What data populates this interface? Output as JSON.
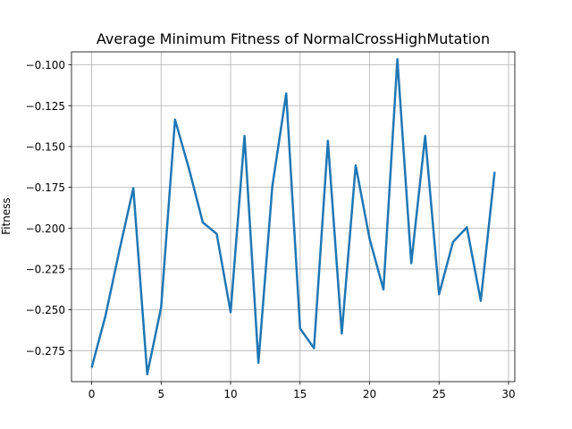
{
  "chart_data": {
    "type": "line",
    "title": "Average Minimum Fitness of NormalCrossHighMutation",
    "xlabel": "",
    "ylabel": "Fitness",
    "xlim": [
      -1.45,
      30.45
    ],
    "ylim": [
      -0.294,
      -0.092
    ],
    "xticks": [
      0,
      5,
      10,
      15,
      20,
      25,
      30
    ],
    "yticks": [
      -0.275,
      -0.25,
      -0.225,
      -0.2,
      -0.175,
      -0.15,
      -0.125,
      -0.1
    ],
    "xtick_labels": [
      "0",
      "5",
      "10",
      "15",
      "20",
      "25",
      "30"
    ],
    "ytick_labels": [
      "−0.275",
      "−0.250",
      "−0.225",
      "−0.200",
      "−0.175",
      "−0.150",
      "−0.125",
      "−0.100"
    ],
    "grid": true,
    "legend": false,
    "color": "#1f77b4",
    "series": [
      {
        "x": [
          0,
          1,
          2,
          3,
          4,
          5,
          6,
          7,
          8,
          9,
          10,
          11,
          12,
          13,
          14,
          15,
          16,
          17,
          18,
          19,
          20,
          21,
          22,
          23,
          24,
          25,
          26,
          27,
          28,
          29
        ],
        "y": [
          -0.2855,
          -0.2535,
          -0.2135,
          -0.1755,
          -0.2895,
          -0.2485,
          -0.1335,
          -0.1635,
          -0.1965,
          -0.2035,
          -0.2515,
          -0.1435,
          -0.2825,
          -0.1745,
          -0.1175,
          -0.2615,
          -0.2735,
          -0.1465,
          -0.2645,
          -0.1615,
          -0.2065,
          -0.2375,
          -0.0965,
          -0.2215,
          -0.1435,
          -0.2405,
          -0.2085,
          -0.1995,
          -0.2445,
          -0.1655
        ]
      }
    ]
  }
}
